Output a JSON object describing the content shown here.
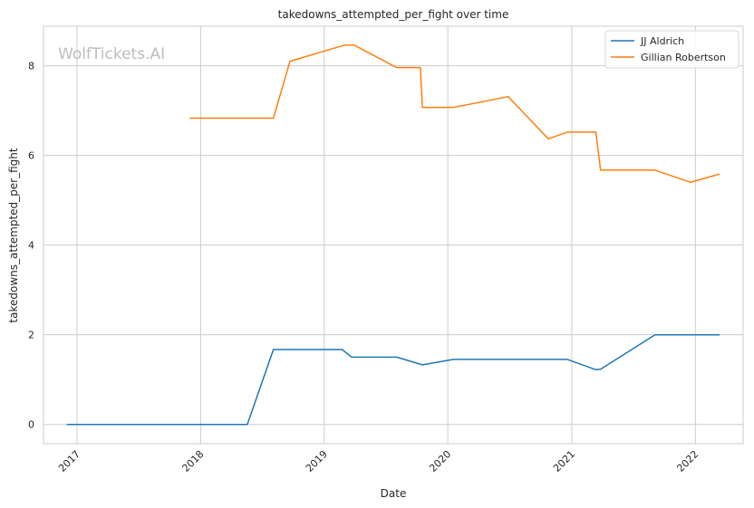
{
  "chart_data": {
    "type": "line",
    "title": "takedowns_attempted_per_fight over time",
    "xlabel": "Date",
    "ylabel": "takedowns_attempted_per_fight",
    "watermark": "WolfTickets.AI",
    "x_ticks": [
      "2017",
      "2018",
      "2019",
      "2020",
      "2021",
      "2022"
    ],
    "y_ticks": [
      "0",
      "2",
      "4",
      "6",
      "8"
    ],
    "xlim": [
      "2016-09-24",
      "2022-05-22"
    ],
    "ylim": [
      -0.43,
      8.88
    ],
    "grid": true,
    "legend_position": "top-right",
    "series": [
      {
        "name": "JJ Aldrich",
        "color": "#1f77b4",
        "points": [
          [
            "2016-12-03",
            0.0
          ],
          [
            "2018-05-19",
            0.0
          ],
          [
            "2018-08-04",
            1.67
          ],
          [
            "2019-02-23",
            1.67
          ],
          [
            "2019-03-23",
            1.5
          ],
          [
            "2019-08-03",
            1.5
          ],
          [
            "2019-10-18",
            1.33
          ],
          [
            "2020-01-18",
            1.45
          ],
          [
            "2020-12-19",
            1.45
          ],
          [
            "2021-03-13",
            1.22
          ],
          [
            "2021-03-27",
            1.23
          ],
          [
            "2021-09-04",
            2.0
          ],
          [
            "2022-03-12",
            2.0
          ]
        ]
      },
      {
        "name": "Gillian Robertson",
        "color": "#ff7f0e",
        "points": [
          [
            "2017-12-01",
            6.83
          ],
          [
            "2018-08-04",
            6.83
          ],
          [
            "2018-09-22",
            8.1
          ],
          [
            "2019-03-02",
            8.46
          ],
          [
            "2019-03-30",
            8.46
          ],
          [
            "2019-08-03",
            7.96
          ],
          [
            "2019-10-12",
            7.96
          ],
          [
            "2019-10-18",
            7.07
          ],
          [
            "2020-01-18",
            7.07
          ],
          [
            "2020-06-27",
            7.31
          ],
          [
            "2020-10-24",
            6.37
          ],
          [
            "2020-12-19",
            6.52
          ],
          [
            "2021-03-13",
            6.52
          ],
          [
            "2021-03-27",
            5.67
          ],
          [
            "2021-09-04",
            5.67
          ],
          [
            "2021-12-18",
            5.4
          ],
          [
            "2022-03-12",
            5.58
          ]
        ]
      }
    ]
  }
}
